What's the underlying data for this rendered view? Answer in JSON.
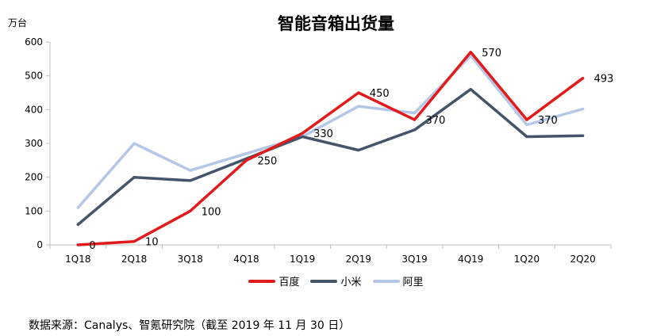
{
  "chart_data": {
    "type": "line",
    "title": "智能音箱出货量",
    "ylabel": "万台",
    "xlabel": "",
    "categories": [
      "1Q18",
      "2Q18",
      "3Q18",
      "4Q18",
      "1Q19",
      "2Q19",
      "3Q19",
      "4Q19",
      "1Q20",
      "2Q20"
    ],
    "ylim": [
      0,
      600
    ],
    "yticks": [
      0,
      100,
      200,
      300,
      400,
      500,
      600
    ],
    "grid": false,
    "legend_position": "bottom",
    "series": [
      {
        "name": "百度",
        "color": "#e31a1c",
        "values": [
          0,
          10,
          100,
          250,
          330,
          450,
          370,
          570,
          370,
          493
        ]
      },
      {
        "name": "小米",
        "color": "#44546a",
        "values": [
          60,
          200,
          190,
          255,
          320,
          280,
          340,
          460,
          320,
          323
        ]
      },
      {
        "name": "阿里",
        "color": "#b4c7e7",
        "values": [
          110,
          300,
          220,
          270,
          320,
          410,
          390,
          560,
          355,
          402
        ]
      }
    ],
    "data_labels": [
      {
        "series": "百度",
        "index": 0,
        "text": "0"
      },
      {
        "series": "百度",
        "index": 1,
        "text": "10"
      },
      {
        "series": "百度",
        "index": 2,
        "text": "100"
      },
      {
        "series": "百度",
        "index": 3,
        "text": "250"
      },
      {
        "series": "百度",
        "index": 4,
        "text": "330"
      },
      {
        "series": "百度",
        "index": 5,
        "text": "450"
      },
      {
        "series": "百度",
        "index": 6,
        "text": "370"
      },
      {
        "series": "百度",
        "index": 7,
        "text": "570"
      },
      {
        "series": "百度",
        "index": 8,
        "text": "370"
      },
      {
        "series": "百度",
        "index": 9,
        "text": "493"
      }
    ]
  },
  "source": "数据来源：Canalys、智氪研究院（截至 2019 年 11 月 30 日）"
}
